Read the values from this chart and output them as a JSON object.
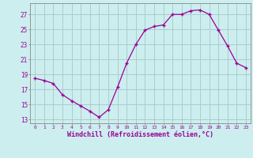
{
  "x": [
    0,
    1,
    2,
    3,
    4,
    5,
    6,
    7,
    8,
    9,
    10,
    11,
    12,
    13,
    14,
    15,
    16,
    17,
    18,
    19,
    20,
    21,
    22,
    23
  ],
  "y": [
    18.5,
    18.2,
    17.8,
    16.3,
    15.5,
    14.8,
    14.1,
    13.3,
    14.3,
    17.3,
    20.5,
    23.0,
    24.9,
    25.4,
    25.6,
    27.0,
    27.0,
    27.5,
    27.6,
    27.0,
    24.9,
    22.8,
    20.5,
    19.9
  ],
  "line_color": "#990099",
  "marker": "+",
  "bg_color": "#cceeee",
  "grid_color": "#aacccc",
  "xlabel": "Windchill (Refroidissement éolien,°C)",
  "ylabel_ticks": [
    13,
    15,
    17,
    19,
    21,
    23,
    25,
    27
  ],
  "xtick_labels": [
    "0",
    "1",
    "2",
    "3",
    "4",
    "5",
    "6",
    "7",
    "8",
    "9",
    "10",
    "11",
    "12",
    "13",
    "14",
    "15",
    "16",
    "17",
    "18",
    "19",
    "20",
    "21",
    "22",
    "23"
  ],
  "ylim": [
    12.5,
    28.5
  ],
  "xlim": [
    -0.5,
    23.5
  ],
  "label_color": "#990099",
  "tick_color": "#990099",
  "font_family": "monospace"
}
